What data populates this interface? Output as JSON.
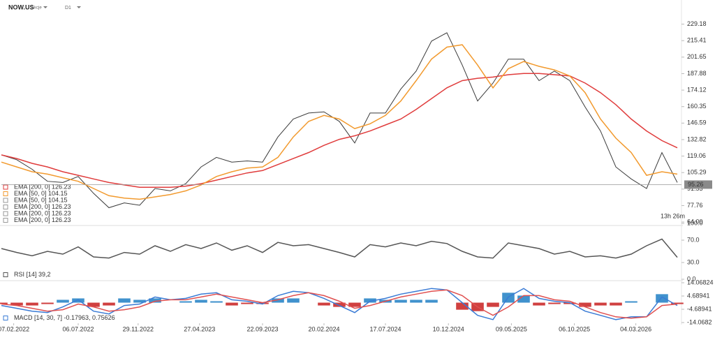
{
  "header": {
    "symbol": "NOW.US",
    "market": "Akcje",
    "interval": "D1"
  },
  "chart_data": [
    {
      "type": "line",
      "xlim": [
        0,
        44
      ],
      "ylim": [
        61.7,
        243.5
      ],
      "yticks": [
        {
          "value": 64,
          "label": "64.00"
        },
        77.76,
        91.53,
        105.29,
        119.06,
        132.82,
        146.59,
        160.35,
        174.12,
        187.88,
        201.65,
        215.41,
        229.18
      ],
      "legend": "lower left",
      "last_price": 95.26,
      "countdown": "13h 26m",
      "overlay_labels": [
        "EMA [50, 0] 104.15",
        "EMA [200, 0] 126.23",
        "EMA [200, 0] 126.23",
        "EMA [200, 0] 126.23"
      ],
      "series": [
        {
          "color": "#3a3a3a",
          "values": [
            120,
            116,
            108,
            98,
            97,
            102,
            88,
            76,
            80,
            78,
            92,
            90,
            96,
            110,
            118,
            114,
            115,
            114,
            135,
            150,
            155,
            156,
            148,
            130,
            155,
            155,
            175,
            190,
            215,
            222,
            195,
            165,
            180,
            200,
            200,
            182,
            190,
            182,
            160,
            140,
            110,
            100,
            92,
            122,
            97
          ]
        },
        {
          "name": "EMA [200, 0] 126.23",
          "color": "#e03c3c",
          "values": [
            120,
            117,
            113,
            110,
            106,
            103,
            100,
            97,
            95,
            93,
            93,
            93,
            94,
            96,
            99,
            102,
            105,
            107,
            112,
            117,
            122,
            128,
            133,
            136,
            140,
            145,
            150,
            158,
            167,
            176,
            182,
            184,
            185,
            187,
            188,
            188,
            187,
            186,
            180,
            172,
            162,
            150,
            140,
            132,
            126
          ]
        },
        {
          "name": "EMA [50, 0] 104.15",
          "color": "#f29a2e",
          "values": [
            114,
            110,
            106,
            104,
            101,
            98,
            92,
            86,
            84,
            83,
            85,
            87,
            90,
            95,
            102,
            106,
            109,
            110,
            118,
            135,
            148,
            153,
            150,
            142,
            146,
            153,
            165,
            182,
            200,
            210,
            212,
            195,
            176,
            192,
            198,
            194,
            191,
            186,
            172,
            150,
            134,
            122,
            103,
            106,
            104
          ]
        }
      ]
    },
    {
      "type": "line",
      "xlim": [
        0,
        44
      ],
      "ylim": [
        0,
        100
      ],
      "yticks": [
        {
          "value": 0,
          "label": "0.0"
        },
        {
          "value": 30,
          "label": "30.0"
        },
        {
          "value": 70,
          "label": "70.0"
        },
        {
          "value": 100,
          "label": "100.0"
        }
      ],
      "legend": "lower left",
      "series": [
        {
          "name": "RSI [14] 39,2",
          "color": "#555555",
          "values": [
            55,
            48,
            42,
            50,
            45,
            58,
            40,
            38,
            48,
            45,
            60,
            50,
            62,
            55,
            65,
            52,
            60,
            48,
            66,
            60,
            62,
            55,
            48,
            40,
            62,
            58,
            65,
            60,
            68,
            64,
            50,
            40,
            38,
            65,
            60,
            55,
            45,
            50,
            40,
            42,
            38,
            45,
            60,
            72,
            39.2
          ]
        }
      ]
    },
    {
      "type": "line",
      "xlim": [
        0,
        44
      ],
      "ylim": [
        -14.0682,
        14.06824
      ],
      "yticks": [
        -14.0682,
        -4.68941,
        4.68941,
        14.06824
      ],
      "legend": "lower left",
      "xticks": [
        {
          "value": 0.8,
          "label": "07.02.2022"
        },
        {
          "value": 5.0,
          "label": "06.07.2022"
        },
        {
          "value": 8.9,
          "label": "29.11.2022"
        },
        {
          "value": 12.9,
          "label": "27.04.2023"
        },
        {
          "value": 17.0,
          "label": "22.09.2023"
        },
        {
          "value": 21.0,
          "label": "20.02.2024"
        },
        {
          "value": 25.0,
          "label": "17.07.2024"
        },
        {
          "value": 29.1,
          "label": "10.12.2024"
        },
        {
          "value": 33.2,
          "label": "09.05.2025"
        },
        {
          "value": 37.3,
          "label": "06.10.2025"
        },
        {
          "value": 41.3,
          "label": "04.03.2026"
        }
      ],
      "series": [
        {
          "type": "bar",
          "color_up": "#1f7fc4",
          "color_down": "#c81e1e",
          "values": [
            -1,
            -2,
            -2,
            -1,
            2,
            3,
            -3,
            -2,
            3,
            2,
            3,
            0,
            1,
            2,
            1,
            -2,
            -1,
            -1,
            3,
            3,
            0,
            -2,
            -3,
            -3,
            3,
            2,
            2,
            2,
            2,
            0,
            -5,
            -6,
            -3,
            7,
            5,
            -2,
            -1,
            -1,
            -3,
            -2,
            -2,
            1,
            0,
            6,
            -1
          ]
        },
        {
          "name": "MACD [14, 30, 7] -0.17963, 0.75626",
          "color": "#3a7bd5",
          "values": [
            -2,
            -4,
            -6,
            -7,
            -3,
            2,
            -6,
            -8,
            -2,
            -1,
            4,
            2,
            3,
            6,
            7,
            2,
            1,
            -1,
            5,
            8,
            7,
            3,
            -2,
            -7,
            1,
            3,
            6,
            8,
            10,
            9,
            0,
            -9,
            -12,
            4,
            10,
            3,
            1,
            0,
            -6,
            -9,
            -12,
            -10,
            -10,
            4,
            -2
          ]
        },
        {
          "color": "#e05050",
          "values": [
            -1,
            -2,
            -4,
            -6,
            -5,
            -1,
            -3,
            -6,
            -5,
            -3,
            1,
            2,
            2,
            4,
            6,
            4,
            2,
            0,
            2,
            5,
            7,
            5,
            1,
            -4,
            -2,
            1,
            4,
            6,
            8,
            9,
            5,
            -3,
            -9,
            -3,
            5,
            5,
            2,
            1,
            -3,
            -7,
            -10,
            -11,
            -10,
            -2,
            -1
          ]
        }
      ]
    }
  ]
}
